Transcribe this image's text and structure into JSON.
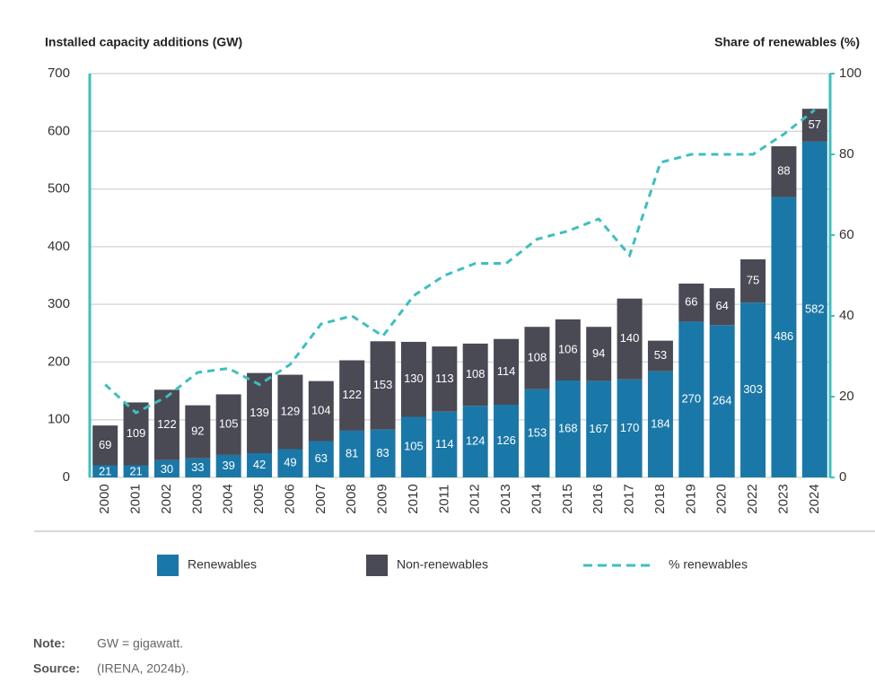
{
  "chart_data": {
    "type": "bar",
    "stacked": true,
    "y_label": "Installed capacity additions (GW)",
    "y2_label": "Share of renewables (%)",
    "categories": [
      "2000",
      "2001",
      "2002",
      "2003",
      "2004",
      "2005",
      "2006",
      "2007",
      "2008",
      "2009",
      "2010",
      "2011",
      "2012",
      "2013",
      "2014",
      "2015",
      "2016",
      "2017",
      "2018",
      "2019",
      "2020",
      "2022",
      "2023",
      "2024"
    ],
    "series": [
      {
        "name": "Renewables",
        "color": "#1a78a8",
        "values": [
          21,
          21,
          30,
          33,
          39,
          42,
          49,
          63,
          81,
          83,
          105,
          114,
          124,
          126,
          153,
          168,
          167,
          170,
          184,
          270,
          264,
          303,
          486,
          582
        ]
      },
      {
        "name": "Non-renewables",
        "color": "#4a4a55",
        "values": [
          69,
          109,
          122,
          92,
          105,
          139,
          129,
          104,
          122,
          153,
          130,
          113,
          108,
          114,
          108,
          106,
          94,
          140,
          53,
          66,
          64,
          75,
          88,
          57
        ]
      },
      {
        "name": "% renewables",
        "color": "#3dbfbf",
        "type": "line",
        "dashed": true,
        "axis": "y2",
        "values": [
          23,
          16,
          20,
          26,
          27,
          23,
          28,
          38,
          40,
          35,
          45,
          50,
          53,
          53,
          59,
          61,
          64,
          55,
          78,
          80,
          80,
          80,
          85,
          91
        ]
      }
    ],
    "ylim": [
      0,
      700
    ],
    "yticks": [
      0,
      100,
      200,
      300,
      400,
      500,
      600,
      700
    ],
    "y2lim": [
      0,
      100
    ],
    "y2ticks": [
      0,
      20,
      40,
      60,
      80,
      100
    ],
    "grid": true,
    "note_label": "Note:",
    "note": "GW = gigawatt.",
    "source_label": "Source:",
    "source": "(IRENA, 2024b)."
  }
}
